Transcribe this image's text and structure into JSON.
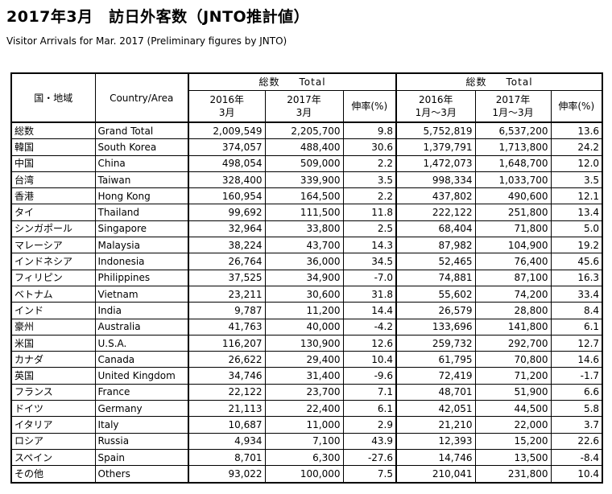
{
  "title": "2017年3月　訪日外客数（JNTO推計値）",
  "subtitle": "Visitor Arrivals for Mar. 2017 (Preliminary figures by JNTO)",
  "headers": {
    "region_jp": "国・地域",
    "region_en": "Country/Area",
    "group1_a": "総数",
    "group1_b": "Total",
    "group2_a": "総数",
    "group2_b": "Total",
    "col_2016_mar_a": "2016年",
    "col_2016_mar_b": "3月",
    "col_2017_mar_a": "2017年",
    "col_2017_mar_b": "3月",
    "col_growth1": "伸率(%)",
    "col_2016_ytd_a": "2016年",
    "col_2016_ytd_b": "1月～3月",
    "col_2017_ytd_a": "2017年",
    "col_2017_ytd_b": "1月～3月",
    "col_growth2": "伸率(%)"
  },
  "rows": [
    [
      "総数",
      "Grand Total",
      "2,009,549",
      "2,205,700",
      "9.8",
      "5,752,819",
      "6,537,200",
      "13.6"
    ],
    [
      "韓国",
      "South Korea",
      "374,057",
      "488,400",
      "30.6",
      "1,379,791",
      "1,713,800",
      "24.2"
    ],
    [
      "中国",
      "China",
      "498,054",
      "509,000",
      "2.2",
      "1,472,073",
      "1,648,700",
      "12.0"
    ],
    [
      "台湾",
      "Taiwan",
      "328,400",
      "339,900",
      "3.5",
      "998,334",
      "1,033,700",
      "3.5"
    ],
    [
      "香港",
      "Hong Kong",
      "160,954",
      "164,500",
      "2.2",
      "437,802",
      "490,600",
      "12.1"
    ],
    [
      "タイ",
      "Thailand",
      "99,692",
      "111,500",
      "11.8",
      "222,122",
      "251,800",
      "13.4"
    ],
    [
      "シンガポール",
      "Singapore",
      "32,964",
      "33,800",
      "2.5",
      "68,404",
      "71,800",
      "5.0"
    ],
    [
      "マレーシア",
      "Malaysia",
      "38,224",
      "43,700",
      "14.3",
      "87,982",
      "104,900",
      "19.2"
    ],
    [
      "インドネシア",
      "Indonesia",
      "26,764",
      "36,000",
      "34.5",
      "52,465",
      "76,400",
      "45.6"
    ],
    [
      "フィリピン",
      "Philippines",
      "37,525",
      "34,900",
      "-7.0",
      "74,881",
      "87,100",
      "16.3"
    ],
    [
      "ベトナム",
      "Vietnam",
      "23,211",
      "30,600",
      "31.8",
      "55,602",
      "74,200",
      "33.4"
    ],
    [
      "インド",
      "India",
      "9,787",
      "11,200",
      "14.4",
      "26,579",
      "28,800",
      "8.4"
    ],
    [
      "豪州",
      "Australia",
      "41,763",
      "40,000",
      "-4.2",
      "133,696",
      "141,800",
      "6.1"
    ],
    [
      "米国",
      "U.S.A.",
      "116,207",
      "130,900",
      "12.6",
      "259,732",
      "292,700",
      "12.7"
    ],
    [
      "カナダ",
      "Canada",
      "26,622",
      "29,400",
      "10.4",
      "61,795",
      "70,800",
      "14.6"
    ],
    [
      "英国",
      "United Kingdom",
      "34,746",
      "31,400",
      "-9.6",
      "72,419",
      "71,200",
      "-1.7"
    ],
    [
      "フランス",
      "France",
      "22,122",
      "23,700",
      "7.1",
      "48,701",
      "51,900",
      "6.6"
    ],
    [
      "ドイツ",
      "Germany",
      "21,113",
      "22,400",
      "6.1",
      "42,051",
      "44,500",
      "5.8"
    ],
    [
      "イタリア",
      "Italy",
      "10,687",
      "11,000",
      "2.9",
      "21,210",
      "22,000",
      "3.7"
    ],
    [
      "ロシア",
      "Russia",
      "4,934",
      "7,100",
      "43.9",
      "12,393",
      "15,200",
      "22.6"
    ],
    [
      "スペイン",
      "Spain",
      "8,701",
      "6,300",
      "-27.6",
      "14,746",
      "13,500",
      "-8.4"
    ],
    [
      "その他",
      "Others",
      "93,022",
      "100,000",
      "7.5",
      "210,041",
      "231,800",
      "10.4"
    ]
  ]
}
